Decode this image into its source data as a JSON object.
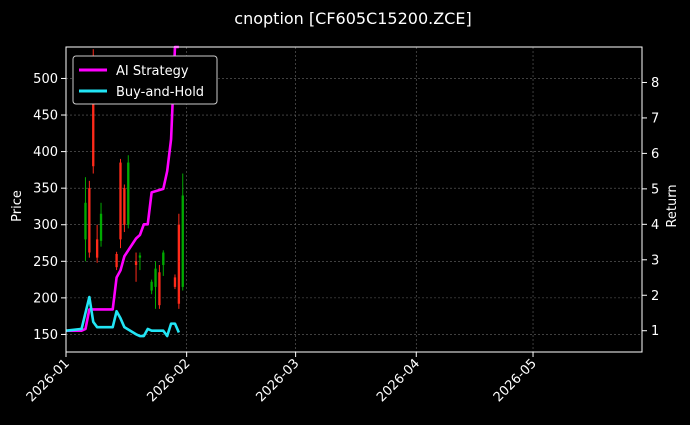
{
  "chart_data": {
    "type": "line",
    "title": "cnoption [CF605C15200.ZCE]",
    "xlabel": "",
    "ylabel": "Price",
    "y2label": "Return",
    "background": "#000000",
    "grid": true,
    "legend_position": "top-left",
    "x_range": [
      "2026-01-01",
      "2026-05-29"
    ],
    "ylim": [
      126,
      543
    ],
    "y2lim": [
      0.4,
      9.0
    ],
    "x_ticks": [
      "2026-01",
      "2026-02",
      "2026-03",
      "2026-04",
      "2026-05"
    ],
    "y_ticks": [
      150,
      200,
      250,
      300,
      350,
      400,
      450,
      500
    ],
    "y2_ticks": [
      1,
      2,
      3,
      4,
      5,
      6,
      7,
      8
    ],
    "colors": {
      "up": "#00aa00",
      "down": "#ff2a1a",
      "strategy": "#ff00ff",
      "benchmark": "#22e5f5"
    },
    "candles": [
      {
        "date": "2026-01-06",
        "open": 280,
        "high": 365,
        "low": 250,
        "close": 330
      },
      {
        "date": "2026-01-07",
        "open": 350,
        "high": 360,
        "low": 255,
        "close": 262
      },
      {
        "date": "2026-01-08",
        "open": 500,
        "high": 540,
        "low": 370,
        "close": 380
      },
      {
        "date": "2026-01-09",
        "open": 280,
        "high": 300,
        "low": 248,
        "close": 255
      },
      {
        "date": "2026-01-10",
        "open": 278,
        "high": 330,
        "low": 270,
        "close": 315
      },
      {
        "date": "2026-01-14",
        "open": 260,
        "high": 263,
        "low": 238,
        "close": 242
      },
      {
        "date": "2026-01-15",
        "open": 385,
        "high": 390,
        "low": 268,
        "close": 280
      },
      {
        "date": "2026-01-16",
        "open": 350,
        "high": 355,
        "low": 290,
        "close": 300
      },
      {
        "date": "2026-01-17",
        "open": 300,
        "high": 395,
        "low": 295,
        "close": 385
      },
      {
        "date": "2026-01-19",
        "open": 250,
        "high": 262,
        "low": 222,
        "close": 245
      },
      {
        "date": "2026-01-20",
        "open": 255,
        "high": 262,
        "low": 238,
        "close": 258
      },
      {
        "date": "2026-01-23",
        "open": 210,
        "high": 225,
        "low": 205,
        "close": 222
      },
      {
        "date": "2026-01-24",
        "open": 215,
        "high": 250,
        "low": 185,
        "close": 240
      },
      {
        "date": "2026-01-25",
        "open": 235,
        "high": 245,
        "low": 185,
        "close": 190
      },
      {
        "date": "2026-01-26",
        "open": 245,
        "high": 265,
        "low": 230,
        "close": 262
      },
      {
        "date": "2026-01-29",
        "open": 228,
        "high": 232,
        "low": 212,
        "close": 215
      },
      {
        "date": "2026-01-30",
        "open": 300,
        "high": 315,
        "low": 185,
        "close": 192
      },
      {
        "date": "2026-01-31",
        "open": 215,
        "high": 370,
        "low": 210,
        "close": 340
      }
    ],
    "series": [
      {
        "name": "AI Strategy",
        "axis": "right",
        "color": "#ff00ff",
        "x": [
          "2026-01-01",
          "2026-01-05",
          "2026-01-06",
          "2026-01-07",
          "2026-01-08",
          "2026-01-09",
          "2026-01-12",
          "2026-01-13",
          "2026-01-14",
          "2026-01-15",
          "2026-01-16",
          "2026-01-19",
          "2026-01-20",
          "2026-01-21",
          "2026-01-22",
          "2026-01-23",
          "2026-01-26",
          "2026-01-27",
          "2026-01-28",
          "2026-01-29",
          "2026-01-30"
        ],
        "values": [
          1.0,
          1.0,
          1.05,
          1.6,
          1.6,
          1.6,
          1.6,
          1.6,
          2.5,
          2.7,
          3.1,
          3.6,
          3.7,
          4.0,
          4.0,
          4.9,
          5.0,
          5.5,
          6.4,
          9.0,
          9.0
        ]
      },
      {
        "name": "Buy-and-Hold",
        "axis": "right",
        "color": "#22e5f5",
        "x": [
          "2026-01-01",
          "2026-01-05",
          "2026-01-06",
          "2026-01-07",
          "2026-01-08",
          "2026-01-09",
          "2026-01-12",
          "2026-01-13",
          "2026-01-14",
          "2026-01-15",
          "2026-01-16",
          "2026-01-19",
          "2026-01-20",
          "2026-01-21",
          "2026-01-22",
          "2026-01-23",
          "2026-01-26",
          "2026-01-27",
          "2026-01-28",
          "2026-01-29",
          "2026-01-30"
        ],
        "values": [
          1.0,
          1.05,
          1.5,
          1.95,
          1.25,
          1.1,
          1.1,
          1.1,
          1.55,
          1.35,
          1.1,
          0.9,
          0.85,
          0.85,
          1.05,
          1.0,
          1.0,
          0.85,
          1.2,
          1.2,
          0.95
        ]
      }
    ]
  }
}
